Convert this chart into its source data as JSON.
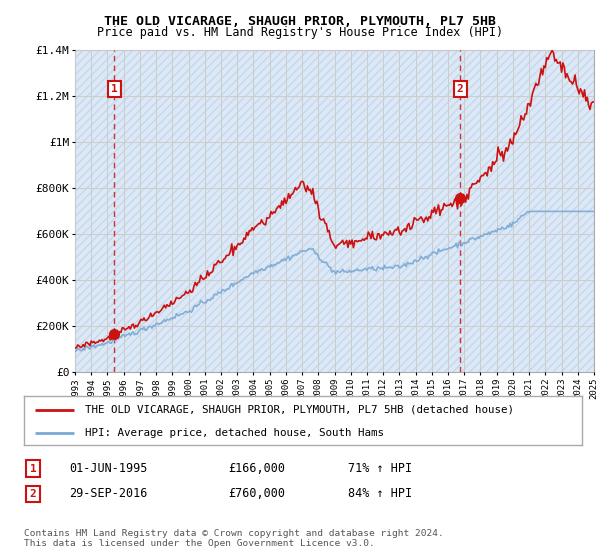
{
  "title": "THE OLD VICARAGE, SHAUGH PRIOR, PLYMOUTH, PL7 5HB",
  "subtitle": "Price paid vs. HM Land Registry's House Price Index (HPI)",
  "legend_line1": "THE OLD VICARAGE, SHAUGH PRIOR, PLYMOUTH, PL7 5HB (detached house)",
  "legend_line2": "HPI: Average price, detached house, South Hams",
  "sale1_date": "01-JUN-1995",
  "sale1_price": "£166,000",
  "sale1_hpi": "71% ↑ HPI",
  "sale2_date": "29-SEP-2016",
  "sale2_price": "£760,000",
  "sale2_hpi": "84% ↑ HPI",
  "footnote": "Contains HM Land Registry data © Crown copyright and database right 2024.\nThis data is licensed under the Open Government Licence v3.0.",
  "ylim": [
    0,
    1400000
  ],
  "yticks": [
    0,
    200000,
    400000,
    600000,
    800000,
    1000000,
    1200000,
    1400000
  ],
  "ytick_labels": [
    "£0",
    "£200K",
    "£400K",
    "£600K",
    "£800K",
    "£1M",
    "£1.2M",
    "£1.4M"
  ],
  "hpi_color": "#7aa8d4",
  "price_color": "#cc1111",
  "marker_color": "#cc1111",
  "vline_color": "#cc1111",
  "grid_color": "#cccccc",
  "bg_color": "#dce8f5",
  "hatch_color": "#c5d8eb",
  "sale1_x": 1995.42,
  "sale1_y": 166000,
  "sale2_x": 2016.75,
  "sale2_y": 760000,
  "xmin": 1993,
  "xmax": 2025
}
